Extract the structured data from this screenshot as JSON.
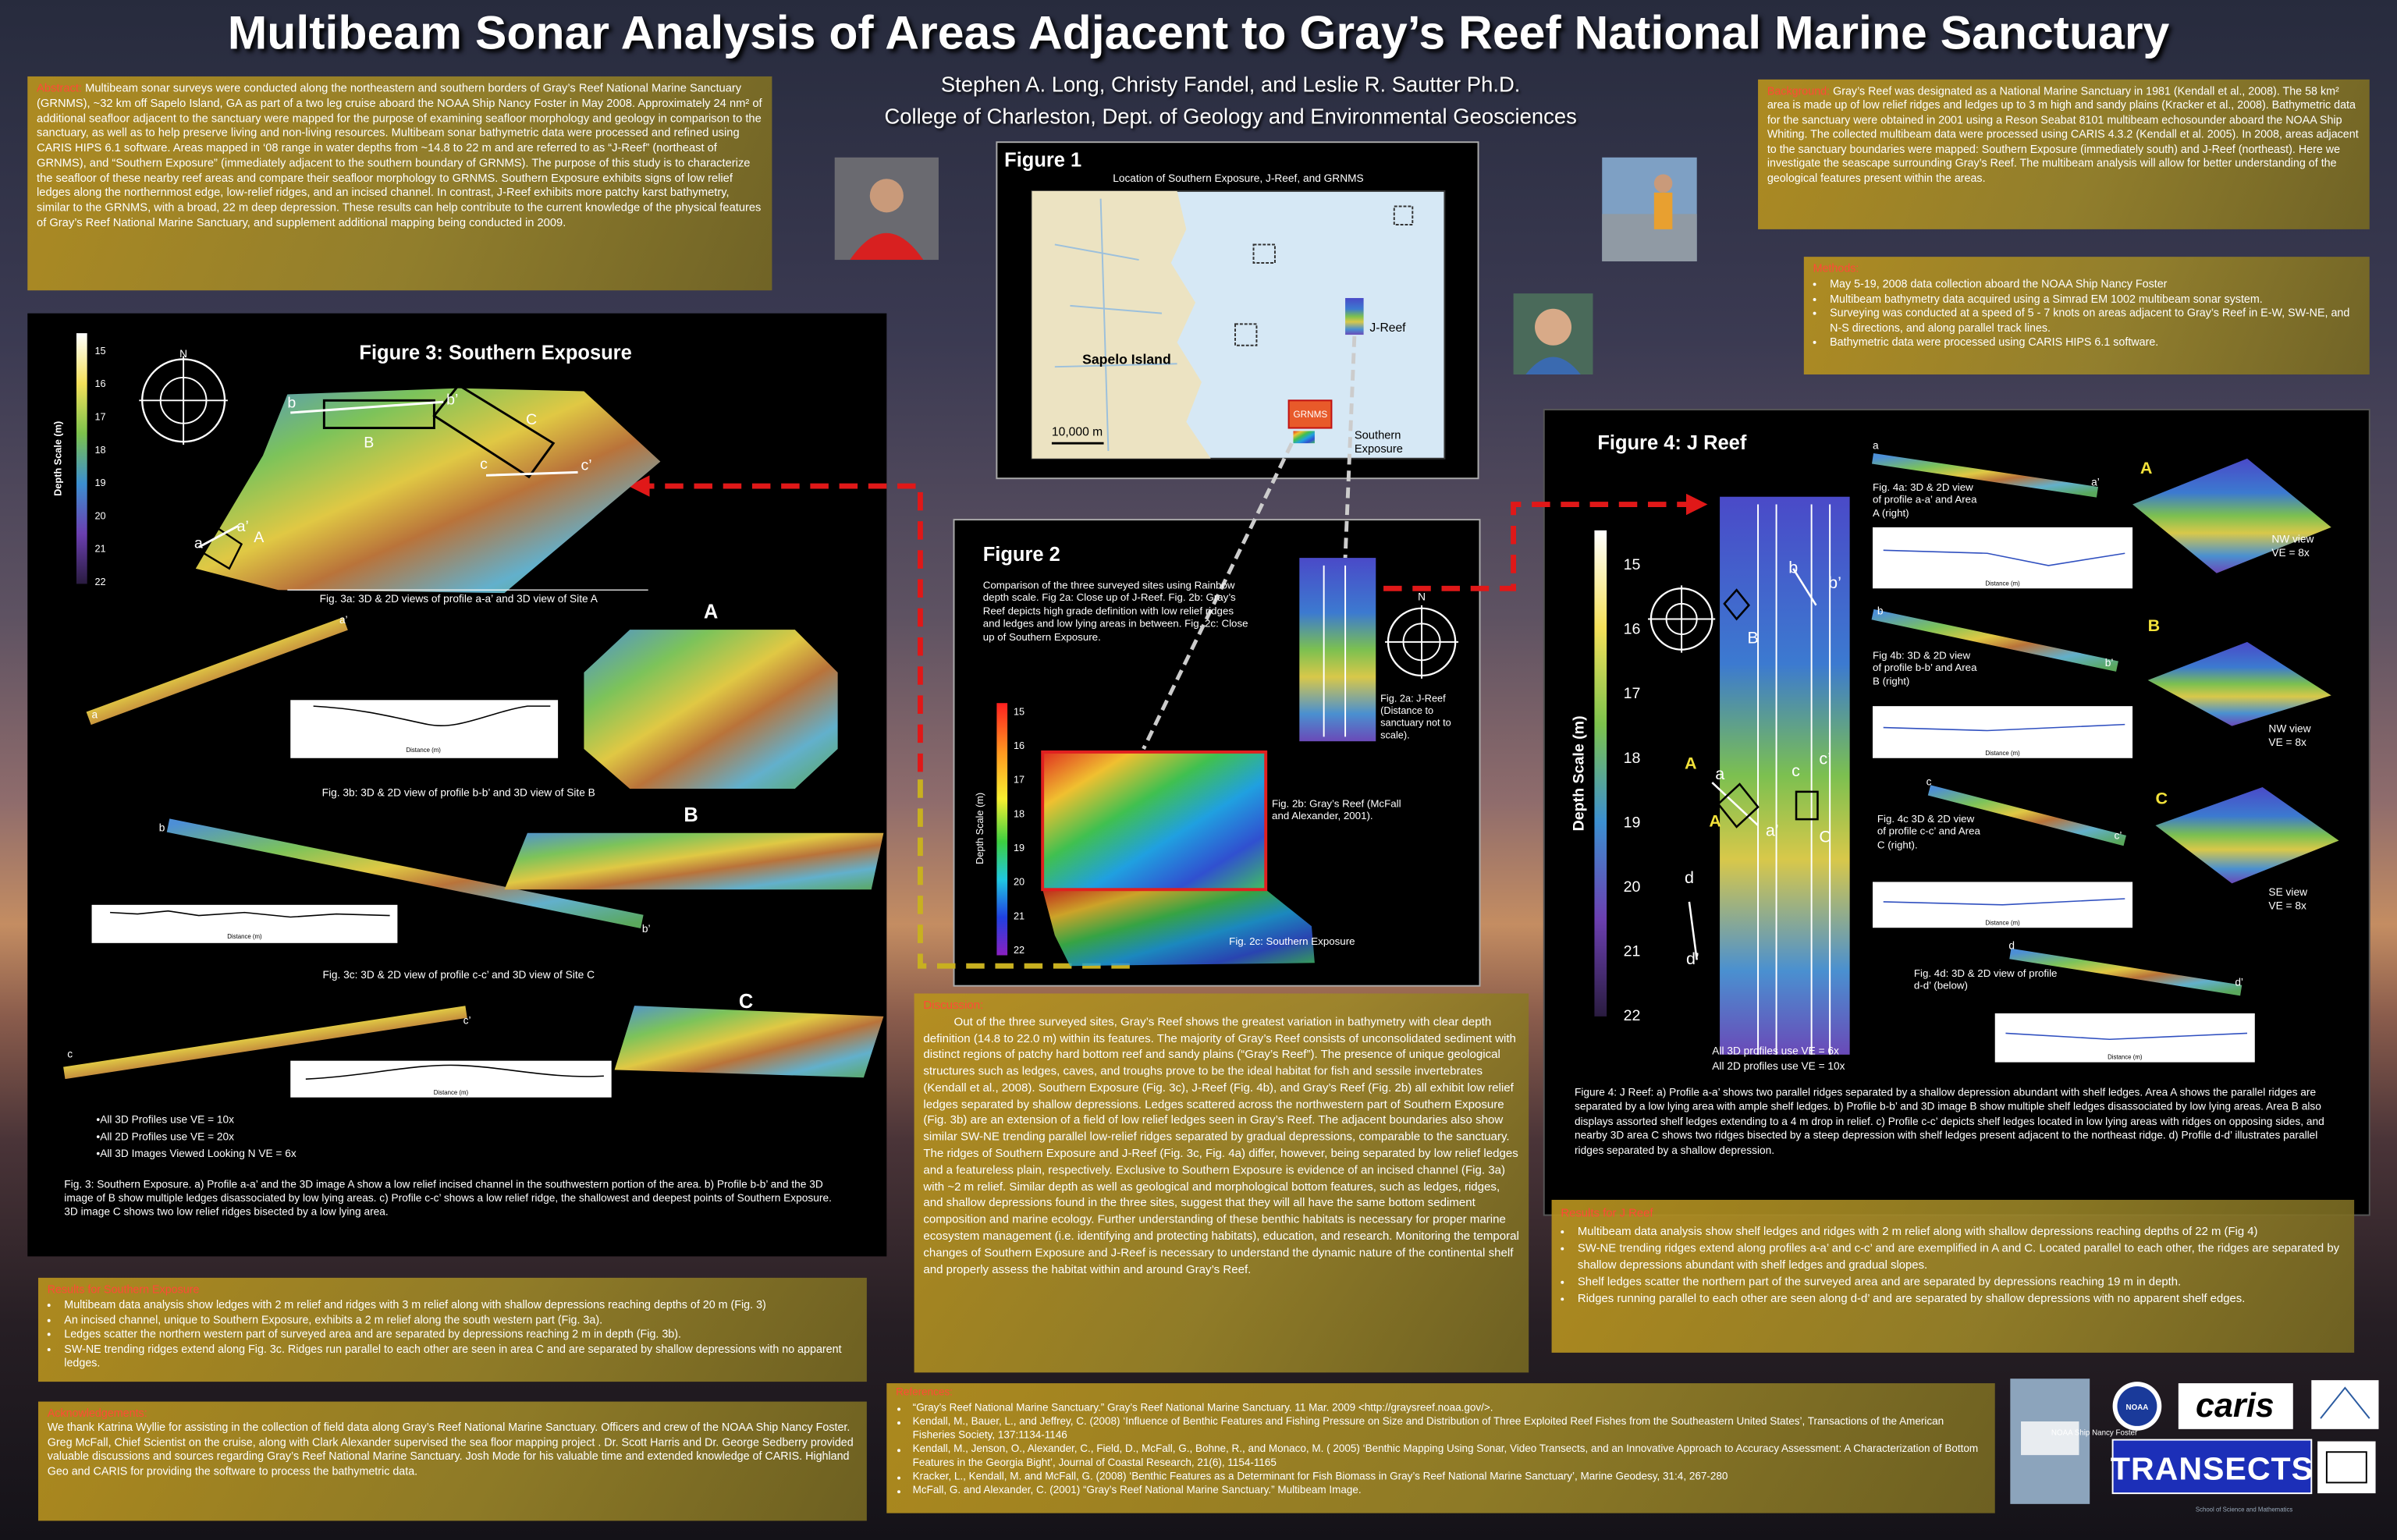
{
  "header": {
    "title": "Multibeam Sonar Analysis of Areas Adjacent to Gray’s Reef National Marine Sanctuary",
    "authors": "Stephen A. Long, Christy Fandel, and Leslie R. Sautter Ph.D.",
    "affiliation": "College of Charleston, Dept. of Geology and Environmental Geosciences"
  },
  "abstract": {
    "label": "Abstract:",
    "text": "Multibeam sonar surveys were conducted along the northeastern and southern borders of Gray’s Reef National Marine Sanctuary (GRNMS), ~32 km off Sapelo Island, GA as part of a two leg cruise aboard the NOAA Ship Nancy Foster in May 2008. Approximately 24 nm² of additional seafloor adjacent to the sanctuary were mapped for the purpose of examining seafloor morphology and geology in comparison to the sanctuary, as well as to help preserve living and non-living resources. Multibeam sonar bathymetric data were processed and refined using CARIS HIPS 6.1 software. Areas mapped in ‘08 range in water depths from ~14.8 to 22 m and are referred to as “J-Reef” (northeast of GRNMS), and “Southern Exposure” (immediately adjacent to the southern boundary of GRNMS). The purpose of this study is to characterize the seafloor of these nearby reef areas and compare their seafloor morphology to GRNMS. Southern Exposure exhibits signs of low relief ledges along the northernmost edge, low-relief ridges, and an incised channel. In contrast, J-Reef exhibits more patchy karst bathymetry, similar to the GRNMS, with a broad, 22 m deep depression. These results can help contribute to the current knowledge of the physical features of Gray’s Reef National Marine Sanctuary, and supplement additional mapping being conducted in 2009."
  },
  "background": {
    "label": "Background:",
    "text": "Gray’s Reef was designated as a National Marine Sanctuary in 1981 (Kendall et al., 2008). The 58 km² area is made up of low relief ridges and ledges up to 3 m high and sandy plains (Kracker et al., 2008). Bathymetric data for the sanctuary were obtained in 2001 using a Reson Seabat 8101 multibeam echosounder aboard the NOAA Ship Whiting. The collected multibeam data were processed using CARIS 4.3.2 (Kendall et al. 2005). In 2008, areas adjacent to the sanctuary boundaries were mapped: Southern Exposure (immediately south) and J-Reef (northeast). Here we investigate the seascape surrounding Gray’s Reef. The multibeam analysis will allow for better understanding of the geological features present within the areas."
  },
  "methods": {
    "label": "Methods:",
    "items": [
      "May 5-19, 2008 data collection aboard the NOAA Ship Nancy Foster",
      "Multibeam bathymetry data acquired using a Simrad EM 1002 multibeam sonar system.",
      "Surveying was conducted at a speed of 5 - 7 knots on areas adjacent to Gray’s Reef in E-W, SW-NE, and N-S directions, and along parallel track lines.",
      "Bathymetric data were processed using CARIS HIPS 6.1 software."
    ]
  },
  "figure1": {
    "title": "Figure 1",
    "subtitle": "Location of Southern Exposure, J-Reef, and GRNMS",
    "sapelo": "Sapelo Island",
    "jreef": "J-Reef",
    "grnms": "GRNMS",
    "southern": "Southern Exposure",
    "scale": "10,000 m"
  },
  "figure2": {
    "title": "Figure 2",
    "description": "Comparison of the three surveyed sites using Rainbow depth scale. Fig 2a: Close up of J-Reef. Fig. 2b: Gray’s Reef depicts high grade definition with low relief ridges and ledges and low lying areas in between. Fig. 2c: Close up of Southern Exposure.",
    "scale_label": "Depth Scale (m)",
    "scale_ticks": [
      15,
      16,
      17,
      18,
      19,
      20,
      21,
      22
    ],
    "compass": "N",
    "caption_2a": "Fig. 2a: J-Reef (Distance to sanctuary not to scale).",
    "caption_2b": "Fig. 2b: Gray’s Reef (McFall and Alexander, 2001).",
    "caption_2c": "Fig. 2c: Southern Exposure"
  },
  "figure3": {
    "title": "Figure 3:  Southern Exposure",
    "scale_label": "Depth Scale (m)",
    "scale_ticks": [
      15,
      16,
      17,
      18,
      19,
      20,
      21,
      22
    ],
    "compass": "N",
    "map_labels": [
      "b",
      "b’",
      "B",
      "C",
      "c",
      "c’",
      "a",
      "a’",
      "A"
    ],
    "caption_3a": "Fig. 3a: 3D & 2D views of profile a-a’ and 3D view of Site A",
    "site_a": "A",
    "caption_3b": "Fig. 3b: 3D & 2D view of profile b-b’ and 3D view of Site B",
    "site_b": "B",
    "caption_3c": "Fig. 3c: 3D & 2D view of profile c-c’ and 3D view of Site C",
    "site_c": "C",
    "profile_letters": [
      "a’",
      "a",
      "b",
      "b’",
      "c’",
      "c"
    ],
    "distance_label": "Distance (m)",
    "notes": [
      "•All 3D Profiles use VE = 10x",
      "•All 2D Profiles use VE = 20x",
      "•All 3D Images Viewed Looking N VE = 6x"
    ],
    "caption": "Fig. 3: Southern Exposure.  a) Profile a-a’ and the 3D image A show a low relief incised channel in the southwestern portion of the area.  b) Profile b-b’ and the 3D image of B show multiple ledges disassociated by low lying areas.  c) Profile c-c’ shows a low relief ridge, the shallowest and deepest points of Southern Exposure.  3D image C shows two low relief ridges bisected by a low lying area."
  },
  "figure4": {
    "title": "Figure 4:   J Reef",
    "scale_label": "Depth Scale (m)",
    "scale_ticks": [
      15,
      16,
      17,
      18,
      19,
      20,
      21,
      22
    ],
    "map_labels": [
      "b",
      "b’",
      "B",
      "A",
      "a",
      "A",
      "a’",
      "c",
      "c’",
      "C",
      "d",
      "d’"
    ],
    "distance_label": "Distance (m)",
    "panels": [
      {
        "letters": [
          "a",
          "a’"
        ],
        "caption": "Fig. 4a: 3D & 2D view of profile a-a’ and Area A (right)",
        "area": "A",
        "view": "NW view VE = 8x"
      },
      {
        "letters": [
          "b",
          "b’"
        ],
        "caption": "Fig 4b: 3D & 2D view of profile b-b’ and Area B (right)",
        "area": "B",
        "view": "NW view VE = 8x"
      },
      {
        "letters": [
          "c",
          "c’"
        ],
        "caption": "Fig. 4c 3D & 2D view of profile c-c’ and Area C (right).",
        "area": "C",
        "view": "SE view VE = 8x"
      },
      {
        "letters": [
          "d",
          "d’"
        ],
        "caption": "Fig. 4d: 3D & 2D view of profile d-d’ (below)"
      }
    ],
    "notes": [
      "All 3D profiles use VE = 6x",
      "All 2D profiles use VE = 10x"
    ],
    "caption": "Figure 4: J Reef:  a) Profile a-a’ shows two parallel ridges separated by a shallow depression abundant with shelf ledges. Area A shows the parallel ridges are separated by a low lying area with ample shelf ledges.  b) Profile b-b’ and 3D image B show multiple shelf ledges disassociated by low lying areas. Area B also displays assorted shelf ledges extending to a 4 m drop in relief.  c) Profile c-c’ depicts shelf ledges located in low lying areas with ridges on opposing sides, and nearby 3D area C shows two ridges bisected by a steep depression with shelf ledges present adjacent to the northeast ridge.  d) Profile d-d’ illustrates parallel ridges separated by a shallow depression."
  },
  "discussion": {
    "label": "Discussion:",
    "text": "Out of the three surveyed sites, Gray’s Reef shows the greatest variation in bathymetry with clear depth definition (14.8 to 22.0 m) within its features. The majority of Gray’s Reef consists of unconsolidated sediment with distinct regions of patchy hard bottom reef and sandy plains (“Gray’s Reef”). The presence of unique geological structures such as ledges, caves, and troughs prove to be the ideal habitat for fish and sessile invertebrates (Kendall et al., 2008). Southern Exposure (Fig. 3c), J-Reef (Fig. 4b), and Gray’s Reef (Fig. 2b) all exhibit low relief ledges separated by shallow depressions. Ledges scattered across the northwestern part of Southern Exposure (Fig. 3b) are an extension of a field of low relief ledges seen in Gray’s Reef. The adjacent boundaries also show similar SW-NE trending parallel low-relief ridges separated by gradual depressions, comparable to the sanctuary. The ridges of Southern Exposure and J-Reef (Fig. 3c, Fig. 4a) differ, however, being separated by low relief ledges and a featureless plain, respectively. Exclusive to Southern Exposure is evidence of an incised channel (Fig. 3a) with ~2 m relief. Similar depth as well as geological and morphological bottom features, such as ledges, ridges, and shallow depressions found in the three sites, suggest that they will all have the same bottom sediment composition and marine ecology. Further understanding of these benthic habitats is necessary for proper marine ecosystem management (i.e. identifying and protecting habitats), education, and research. Monitoring the temporal changes of Southern Exposure and J-Reef is necessary to understand the dynamic nature of the continental shelf and properly assess the habitat within and around Gray’s Reef."
  },
  "results_southern": {
    "label": "Results for Southern Exposure",
    "items": [
      "Multibeam data analysis show ledges with 2 m relief and ridges with 3 m relief along with shallow depressions reaching depths of 20 m (Fig. 3)",
      "An incised channel, unique to Southern Exposure, exhibits a 2 m relief along the south western part (Fig. 3a).",
      "Ledges scatter the northern western part of surveyed area and are separated by depressions reaching 2 m in depth (Fig. 3b).",
      "SW-NE trending ridges extend along Fig. 3c. Ridges run parallel to each other are seen in area C and are separated by shallow depressions with no apparent ledges."
    ]
  },
  "results_jreef": {
    "label": "Results for J Reef",
    "items": [
      "Multibeam data analysis show shelf ledges and ridges with 2 m relief along with shallow depressions reaching depths of 22 m (Fig 4)",
      "SW-NE trending ridges extend along profiles a-a’ and c-c’ and are exemplified in A and C. Located parallel to each other, the ridges are separated by shallow depressions abundant with shelf ledges and gradual slopes.",
      "Shelf ledges scatter the northern part of the surveyed area and are separated by depressions reaching 19 m in depth.",
      "Ridges running parallel to each other are seen along d-d’ and are separated by shallow depressions with no apparent shelf edges."
    ]
  },
  "acknowledgements": {
    "label": "Acknowledgements:",
    "text": "We thank Katrina Wyllie for assisting in the collection of field data along Gray’s Reef National Marine Sanctuary. Officers and crew of the NOAA Ship Nancy Foster. Greg McFall, Chief Scientist on the cruise, along with Clark Alexander supervised the sea floor mapping project . Dr. Scott Harris and Dr. George Sedberry provided valuable discussions and sources regarding Gray’s Reef National Marine Sanctuary. Josh Mode for his valuable time and extended knowledge of CARIS.  Highland Geo and CARIS for providing the software to process the bathymetric data."
  },
  "references": {
    "label": "References:",
    "items": [
      "“Gray’s Reef National Marine Sanctuary.” Gray’s Reef National Marine Sanctuary. 11 Mar. 2009 <http://graysreef.noaa.gov/>.",
      "Kendall, M., Bauer, L., and Jeffrey, C. (2008) ‘Influence of Benthic Features and Fishing Pressure on Size and Distribution of Three Exploited Reef Fishes from the Southeastern United States’, Transactions of the American Fisheries Society, 137:1134-1146",
      "Kendall, M., Jenson, O., Alexander, C., Field, D., McFall, G., Bohne, R., and Monaco, M. ( 2005) ‘Benthic Mapping Using Sonar, Video Transects, and an Innovative Approach to Accuracy Assessment: A Characterization of Bottom Features in the Georgia Bight’, Journal of Coastal Research, 21(6), 1154-1165",
      "Kracker, L., Kendall, M. and McFall, G. (2008) ‘Benthic Features as a Determinant for Fish Biomass in Gray’s Reef National Marine Sanctuary’, Marine Geodesy, 31:4, 267-280",
      "McFall, G. and Alexander, C. (2001) “Gray’s Reef National Marine Sanctuary.” Multibeam Image."
    ]
  },
  "logos": {
    "ship": "NOAA Ship Nancy Foster",
    "noaa": "NOAA",
    "caris": "caris",
    "transects": "TRANSECTS",
    "school": "School of Science and Mathematics"
  }
}
